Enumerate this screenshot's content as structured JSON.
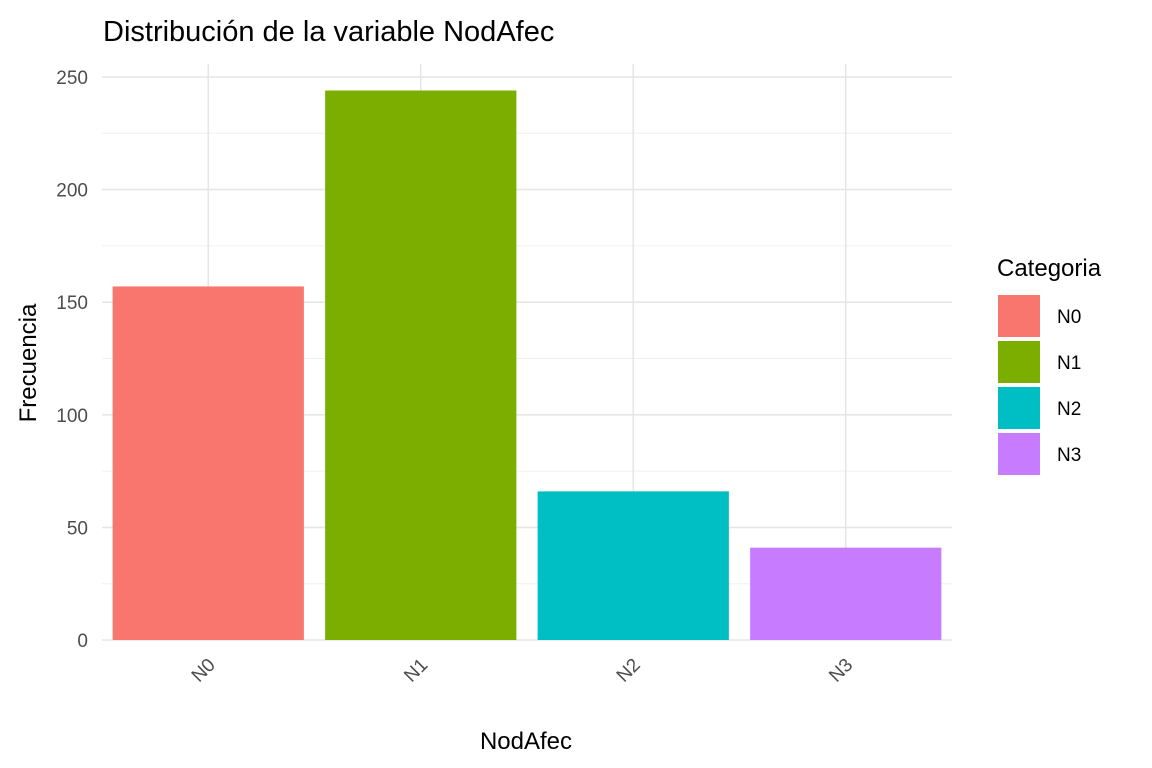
{
  "chart_data": {
    "type": "bar",
    "title": "Distribución de la variable NodAfec",
    "xlabel": "NodAfec",
    "ylabel": "Frecuencia",
    "categories": [
      "N0",
      "N1",
      "N2",
      "N3"
    ],
    "values": [
      157,
      244,
      66,
      41
    ],
    "colors": [
      "#F8766D",
      "#7CAE00",
      "#00BFC4",
      "#C77CFF"
    ],
    "ylim": [
      0,
      250
    ],
    "y_ticks": [
      0,
      50,
      100,
      150,
      200,
      250
    ],
    "y_tick_labels": [
      "0",
      "50",
      "100",
      "150",
      "200",
      "250"
    ],
    "x_tick_rotation": "-45deg",
    "grid": true,
    "legend": {
      "title": "Categoria",
      "position": "right",
      "entries": [
        "N0",
        "N1",
        "N2",
        "N3"
      ]
    }
  }
}
